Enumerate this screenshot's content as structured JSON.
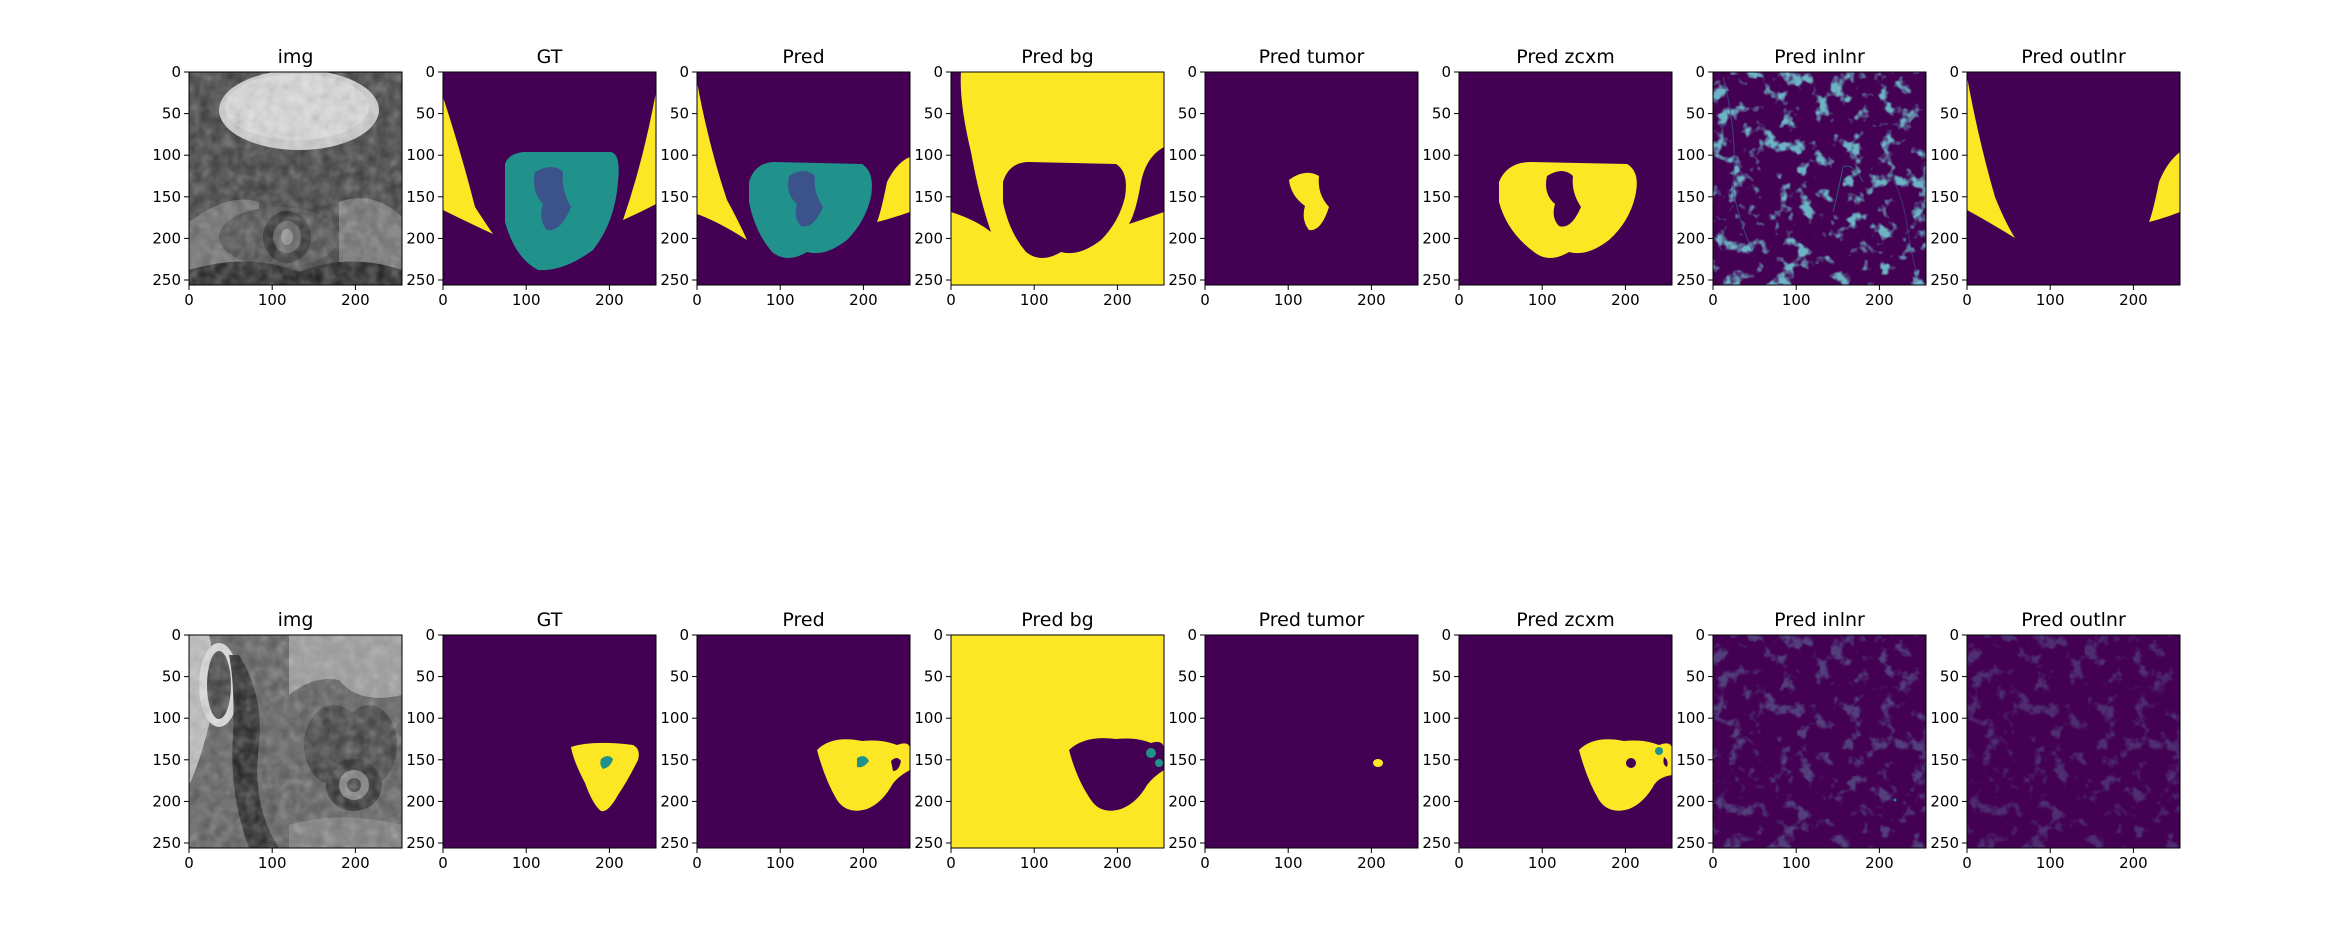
{
  "figure": {
    "rows": [
      {
        "panels": [
          {
            "title": "img",
            "kind": "mri1"
          },
          {
            "title": "GT",
            "kind": "gt1"
          },
          {
            "title": "Pred",
            "kind": "pred1"
          },
          {
            "title": "Pred bg",
            "kind": "bg1"
          },
          {
            "title": "Pred tumor",
            "kind": "tumor1"
          },
          {
            "title": "Pred zcxm",
            "kind": "zcxm1"
          },
          {
            "title": "Pred inlnr",
            "kind": "inlnr1"
          },
          {
            "title": "Pred outlnr",
            "kind": "outlnr1"
          }
        ]
      },
      {
        "panels": [
          {
            "title": "img",
            "kind": "mri2"
          },
          {
            "title": "GT",
            "kind": "gt2"
          },
          {
            "title": "Pred",
            "kind": "pred2"
          },
          {
            "title": "Pred bg",
            "kind": "bg2"
          },
          {
            "title": "Pred tumor",
            "kind": "tumor2"
          },
          {
            "title": "Pred zcxm",
            "kind": "zcxm2"
          },
          {
            "title": "Pred inlnr",
            "kind": "inlnr2"
          },
          {
            "title": "Pred outlnr",
            "kind": "outlnr2"
          }
        ]
      }
    ],
    "axes": {
      "x_ticks": [
        0,
        100,
        200
      ],
      "y_ticks": [
        0,
        50,
        100,
        150,
        200,
        250
      ],
      "range": [
        0,
        256
      ]
    },
    "colormap": {
      "low": "#440154",
      "mid_low": "#3b528b",
      "mid": "#21918c",
      "high": "#fde725",
      "gray_dark": "#1a1a1a",
      "gray_light": "#cfcfcf"
    }
  }
}
